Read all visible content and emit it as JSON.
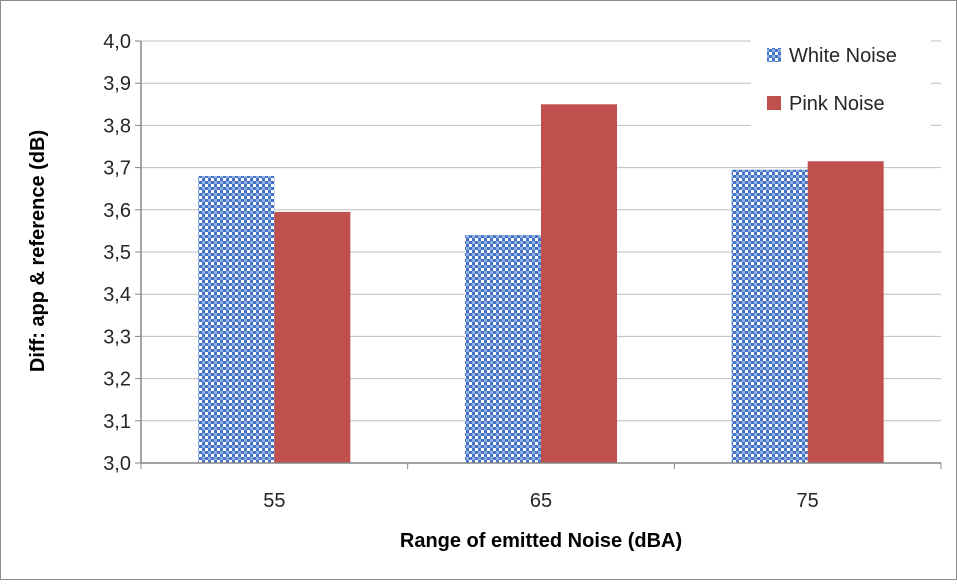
{
  "chart_data": {
    "type": "bar",
    "title": "",
    "xlabel": "Range of emitted Noise (dBA)",
    "ylabel": "Diff: app & reference (dB)",
    "categories": [
      "55",
      "65",
      "75"
    ],
    "series": [
      {
        "name": "White Noise",
        "values": [
          3.68,
          3.54,
          3.695
        ],
        "color": "#4472C4",
        "pattern": "checker"
      },
      {
        "name": "Pink Noise",
        "values": [
          3.595,
          3.85,
          3.715
        ],
        "color": "#C0504D",
        "pattern": "solid"
      }
    ],
    "ylim": [
      3.0,
      4.0
    ],
    "yticks": [
      "3,0",
      "3,1",
      "3,2",
      "3,3",
      "3,4",
      "3,5",
      "3,6",
      "3,7",
      "3,8",
      "3,9",
      "4,0"
    ],
    "grid": true,
    "legend_position": "top-right"
  }
}
